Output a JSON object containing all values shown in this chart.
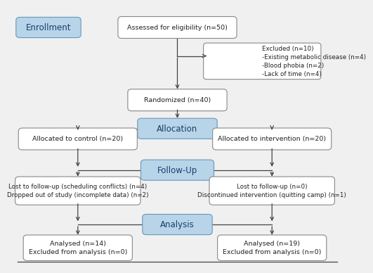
{
  "bg_color": "#f0f0f0",
  "box_white": "#ffffff",
  "box_blue": "#b8d4e8",
  "box_border_white": "#888888",
  "box_border_blue": "#6699bb",
  "enrollment_label": "Enrollment",
  "assessed_text": "Assessed for eligibility (n=50)",
  "excluded_text": "Excluded (n=10)\n-Existing metabolic disease (n=4)\n-Blood phobia (n=2)\n-Lack of time (n=4)",
  "randomized_text": "Randomized (n=40)",
  "allocation_label": "Allocation",
  "control_text": "Allocated to control (n=20)",
  "intervention_text": "Allocated to intervention (n=20)",
  "followup_label": "Follow-Up",
  "control_followup_text": "Lost to follow-up (scheduling conflicts) (n=4)\nDropped out of study (incomplete data) (n=2)",
  "intervention_followup_text": "Lost to follow-up (n=0)\nDiscontinued intervention (quitting camp) (n=1)",
  "analysis_label": "Analysis",
  "control_analysis_text": "Analysed (n=14)\nExcluded from analysis (n=0)",
  "intervention_analysis_text": "Analysed (n=19)\nExcluded from analysis (n=0)",
  "font_size_label": 8.5,
  "font_size_box": 6.8,
  "font_size_box_sm": 6.3,
  "text_color_dark": "#222222",
  "text_color_blue": "#1a3d6e"
}
